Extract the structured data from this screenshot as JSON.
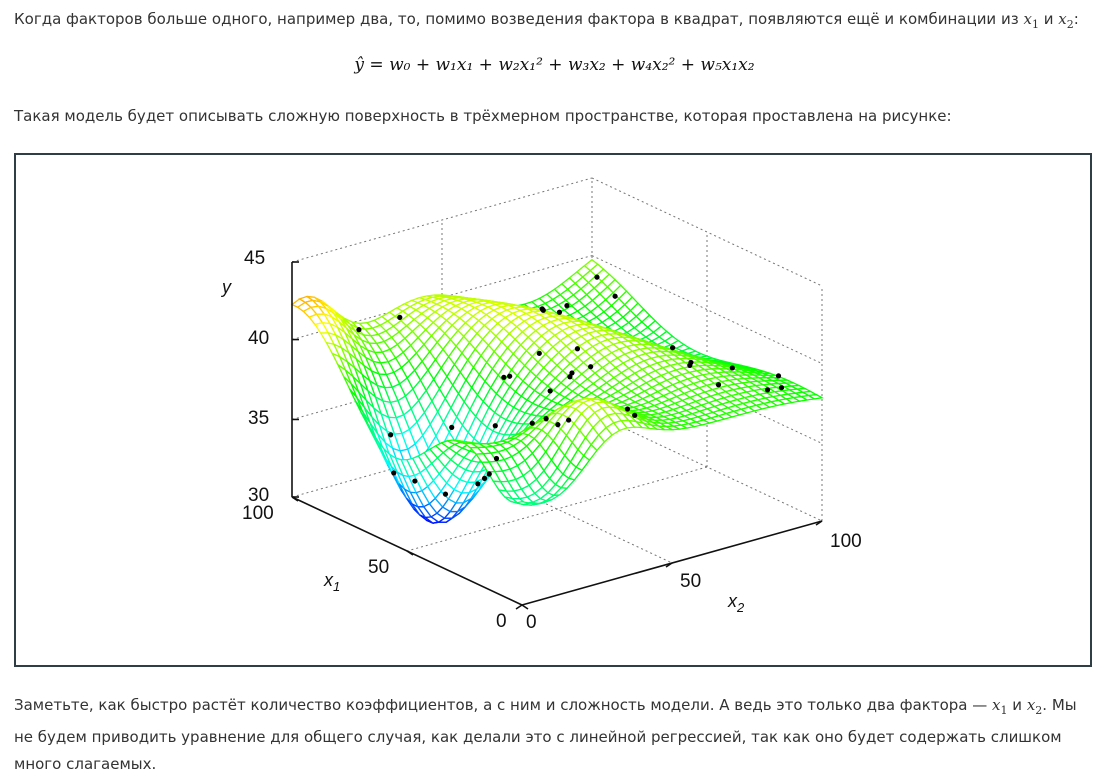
{
  "intro": {
    "text": "Когда факторов больше одного, например два, то, помимо возведения фактора в квадрат, появляются ещё и комбинации из",
    "var1": "x",
    "var1_sub": "1",
    "conj": "и",
    "var2": "x",
    "var2_sub": "2",
    "end": ":"
  },
  "formula": {
    "text": "ŷ = w₀ + w₁x₁ + w₂x₁² + w₃x₂ + w₄x₂² + w₅x₁x₂"
  },
  "caption_before": "Такая модель будет описывать сложную поверхность в трёхмерном пространстве, которая проставлена на рисунке:",
  "figure": {
    "y_label": "y",
    "y_ticks": [
      "45",
      "40",
      "35",
      "30"
    ],
    "x1_label": "x",
    "x1_sub": "1",
    "x1_ticks": [
      "100",
      "50",
      "0"
    ],
    "x2_label": "x",
    "x2_sub": "2",
    "x2_ticks": [
      "0",
      "50",
      "100"
    ]
  },
  "outro": {
    "text1": "Заметьте, как быстро растёт количество коэффициентов, а с ним и сложность модели. А ведь это только два фактора —",
    "var1": "x",
    "var1_sub": "1",
    "conj": "и",
    "var2": "x",
    "var2_sub": "2",
    "text2": ". Мы не будем приводить уравнение для общего случая, как делали это с линейной регрессией, так как оно будет содержать слишком много слагаемых."
  }
}
